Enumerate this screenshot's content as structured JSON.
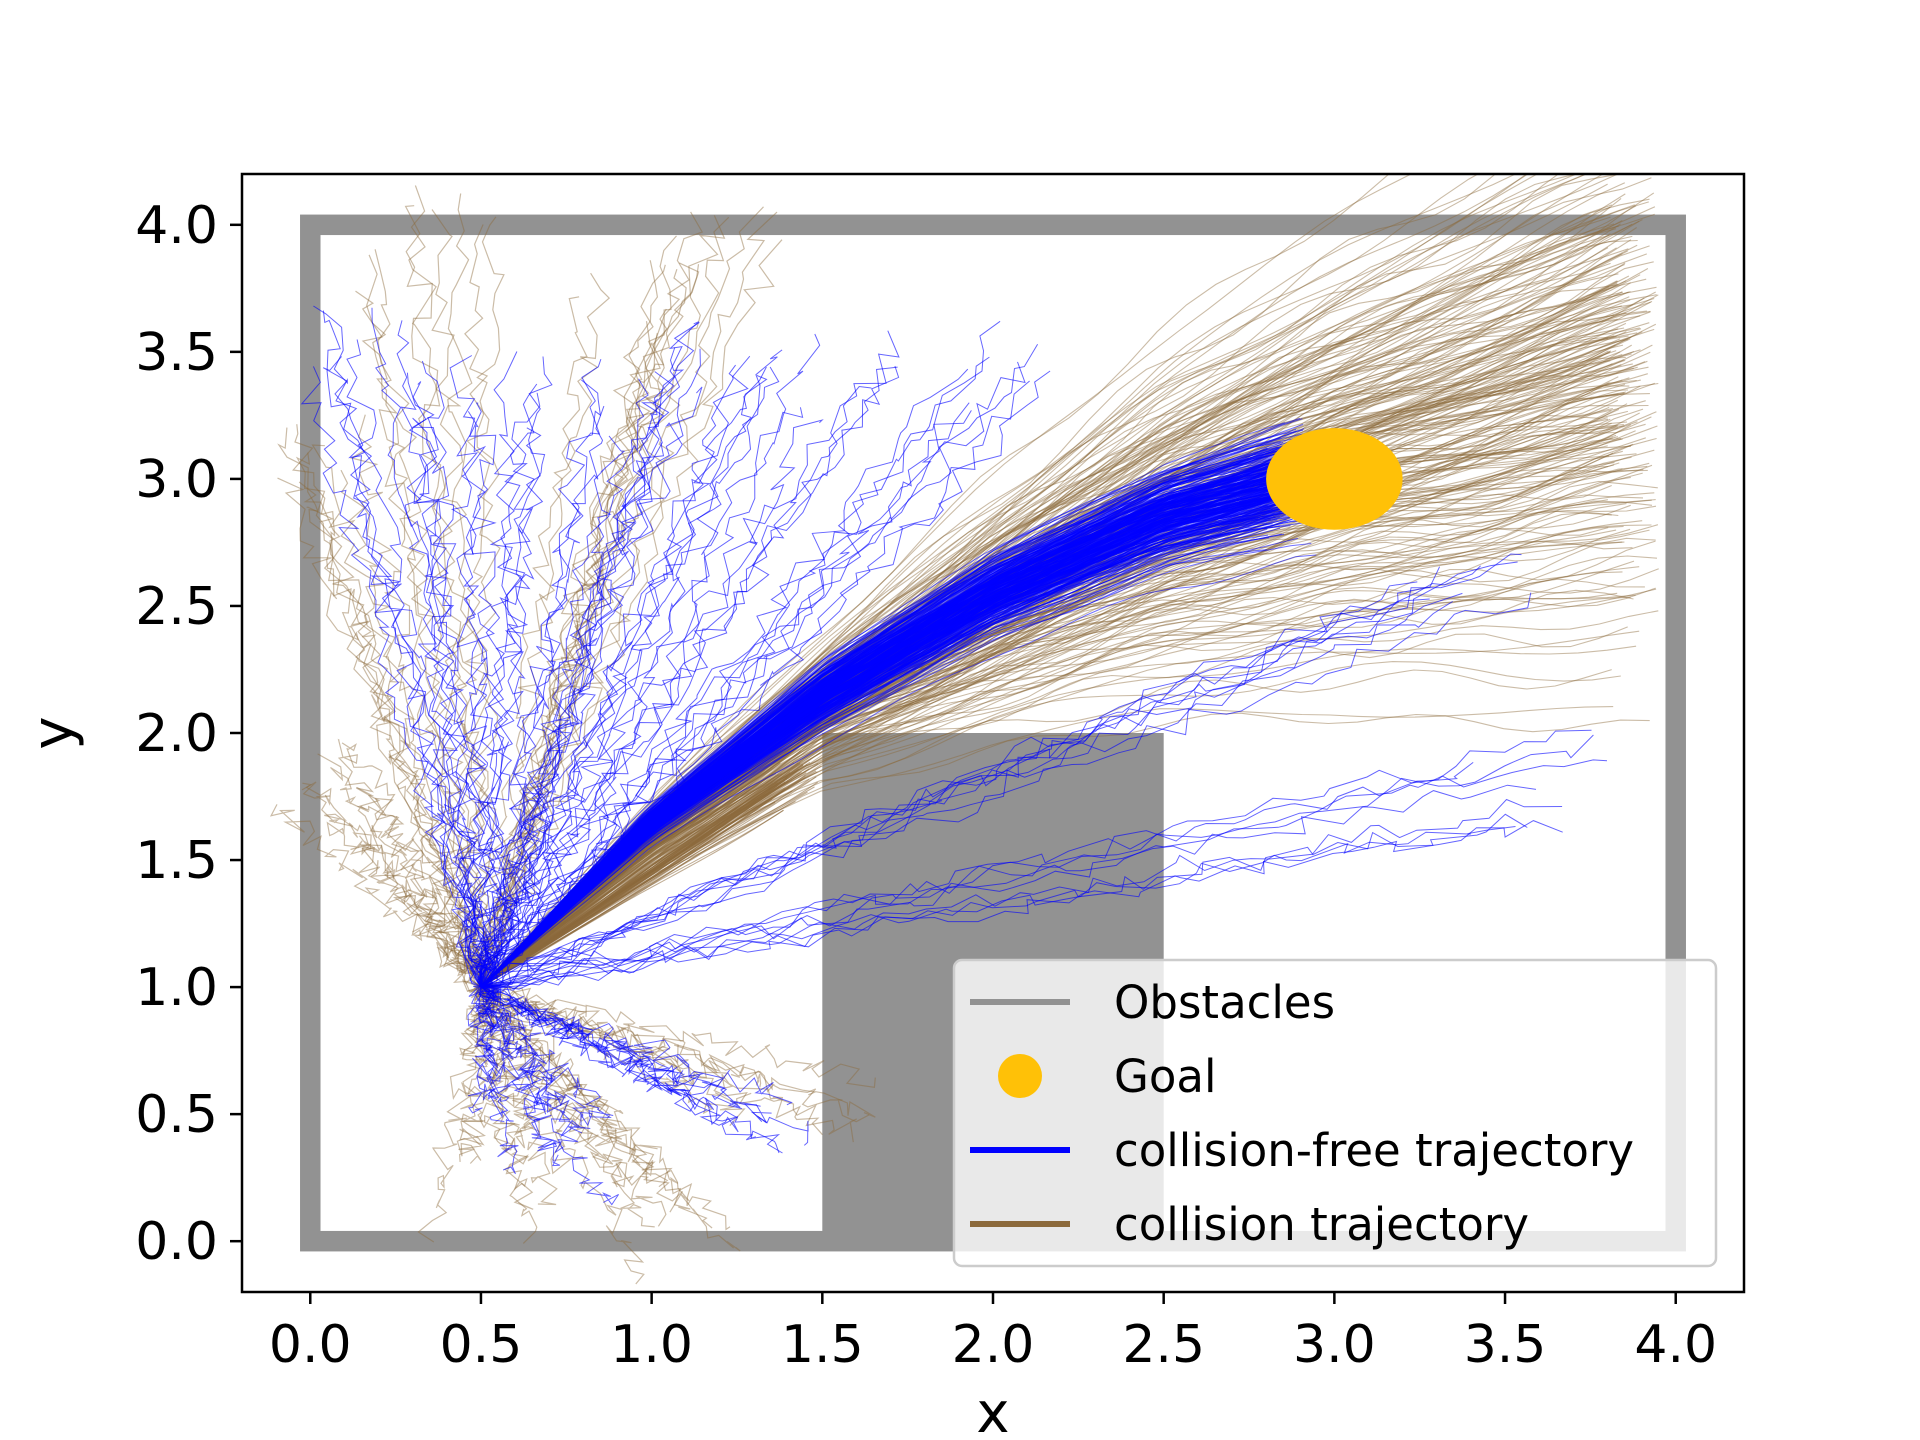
{
  "chart_data": {
    "type": "line",
    "title": "",
    "xlabel": "x",
    "ylabel": "y",
    "xlim": [
      -0.2,
      4.2
    ],
    "ylim": [
      -0.2,
      4.2
    ],
    "xticks": [
      "0.0",
      "0.5",
      "1.0",
      "1.5",
      "2.0",
      "2.5",
      "3.0",
      "3.5",
      "4.0"
    ],
    "yticks": [
      "0.0",
      "0.5",
      "1.0",
      "1.5",
      "2.0",
      "2.5",
      "3.0",
      "3.5",
      "4.0"
    ],
    "grid": false,
    "legend_position": "lower-right",
    "start_point": [
      0.5,
      1.0
    ],
    "obstacles": {
      "color": "#929292",
      "boundary": [
        [
          0.0,
          0.0
        ],
        [
          4.0,
          4.0
        ]
      ],
      "wall_thickness": 0.06,
      "block": [
        [
          1.5,
          0.0
        ],
        [
          2.5,
          2.0
        ]
      ]
    },
    "goal": {
      "center": [
        3.0,
        3.0
      ],
      "radius": 0.2,
      "color": "#FFC107"
    },
    "legend": [
      {
        "label": "Obstacles",
        "kind": "line",
        "color": "#929292"
      },
      {
        "label": "Goal",
        "kind": "dot",
        "color": "#FFC107"
      },
      {
        "label": "collision-free trajectory",
        "kind": "line",
        "color": "#0000FF"
      },
      {
        "label": "collision trajectory",
        "kind": "line",
        "color": "#8C6A3C"
      }
    ],
    "series": [
      {
        "name": "collision-free trajectory",
        "color": "#0000FF",
        "representative": {
          "x": [
            0.5,
            1.0,
            1.5,
            2.0,
            2.5,
            2.9
          ],
          "y": [
            1.0,
            1.65,
            2.15,
            2.55,
            2.85,
            3.0
          ]
        },
        "spread": [
          [
            0.5,
            0.0
          ],
          [
            1.5,
            0.06
          ],
          [
            2.9,
            0.1
          ]
        ],
        "stray_endpoints": [
          [
            0.85,
            3.35
          ],
          [
            1.55,
            3.45
          ],
          [
            1.25,
            3.5
          ],
          [
            2.0,
            3.4
          ],
          [
            3.6,
            1.8
          ],
          [
            3.4,
            2.6
          ],
          [
            0.7,
            0.3
          ],
          [
            1.3,
            0.5
          ],
          [
            0.15,
            3.5
          ],
          [
            0.5,
            3.3
          ]
        ]
      },
      {
        "name": "collision trajectory",
        "color": "#8C6A3C",
        "representative": {
          "x": [
            0.5,
            1.0,
            1.5,
            2.0,
            2.5,
            3.0,
            3.5,
            3.95
          ],
          "y": [
            1.0,
            1.6,
            2.1,
            2.5,
            2.85,
            3.1,
            3.3,
            3.5
          ]
        },
        "spread": [
          [
            0.5,
            0.0
          ],
          [
            1.5,
            0.12
          ],
          [
            2.5,
            0.3
          ],
          [
            3.95,
            0.55
          ]
        ],
        "lower_branch": {
          "x": [
            0.5,
            1.0,
            1.5
          ],
          "y": [
            1.0,
            1.45,
            1.9
          ]
        },
        "stray_endpoints": [
          [
            0.35,
            3.95
          ],
          [
            1.2,
            3.95
          ],
          [
            0.0,
            3.1
          ],
          [
            0.0,
            1.8
          ],
          [
            0.55,
            0.2
          ],
          [
            1.1,
            0.05
          ],
          [
            1.45,
            0.6
          ],
          [
            1.0,
            3.75
          ]
        ]
      }
    ]
  }
}
